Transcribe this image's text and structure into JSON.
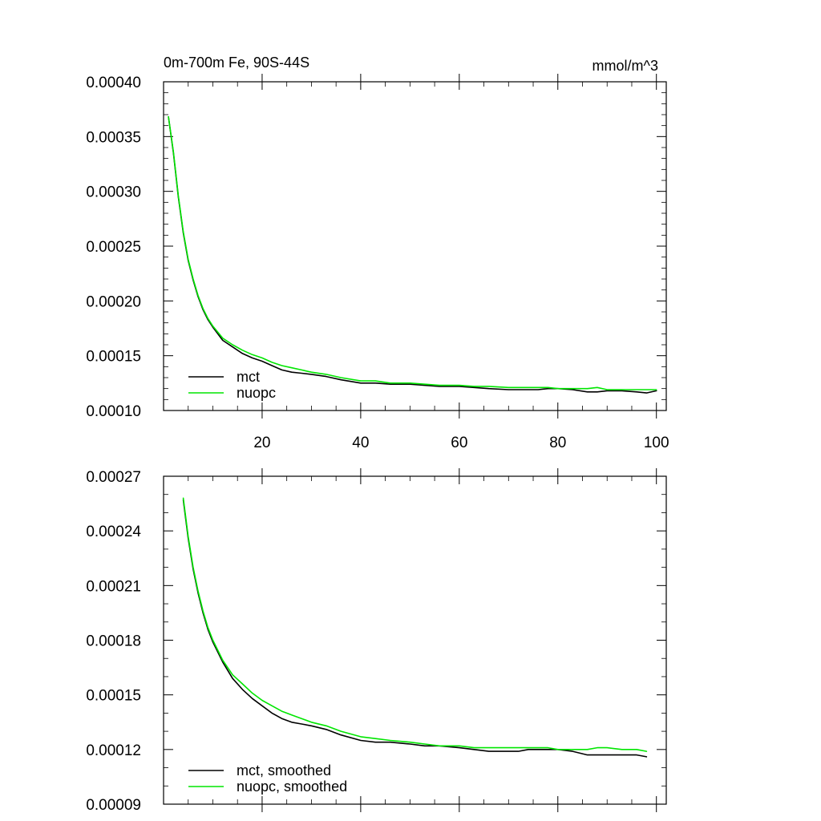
{
  "chart_data": [
    {
      "type": "line",
      "title": "0m-700m Fe, 90S-44S",
      "units": "mmol/m^3",
      "xlabel": "",
      "ylabel": "",
      "xlim": [
        0,
        102
      ],
      "ylim": [
        0.0001,
        0.0004
      ],
      "xticks": [
        20,
        40,
        60,
        80,
        100
      ],
      "xtick_labels": [
        "20",
        "40",
        "60",
        "80",
        "100"
      ],
      "yticks": [
        0.0001,
        0.00015,
        0.0002,
        0.00025,
        0.0003,
        0.00035,
        0.0004
      ],
      "ytick_labels": [
        "0.00010",
        "0.00015",
        "0.00020",
        "0.00025",
        "0.00030",
        "0.00035",
        "0.00040"
      ],
      "grid": false,
      "legend_position": "bottom-left",
      "series": [
        {
          "name": "mct",
          "color": "#000000",
          "x": [
            1,
            2,
            3,
            4,
            5,
            6,
            7,
            8,
            9,
            10,
            12,
            14,
            16,
            18,
            20,
            22,
            24,
            26,
            28,
            30,
            33,
            36,
            40,
            43,
            46,
            50,
            53,
            56,
            60,
            63,
            66,
            70,
            72,
            74,
            76,
            78,
            80,
            83,
            86,
            88,
            90,
            93,
            96,
            98,
            100
          ],
          "y": [
            0.000368,
            0.000335,
            0.000295,
            0.000262,
            0.000237,
            0.000219,
            0.000204,
            0.000192,
            0.000183,
            0.000176,
            0.000164,
            0.000158,
            0.000152,
            0.000148,
            0.000145,
            0.000141,
            0.000137,
            0.000135,
            0.000134,
            0.000133,
            0.000131,
            0.000128,
            0.000125,
            0.000125,
            0.000124,
            0.000124,
            0.000123,
            0.000122,
            0.000122,
            0.000121,
            0.00012,
            0.000119,
            0.000119,
            0.000119,
            0.000119,
            0.00012,
            0.00012,
            0.000119,
            0.000117,
            0.000117,
            0.000118,
            0.000118,
            0.000117,
            0.000116,
            0.000118
          ]
        },
        {
          "name": "nuopc",
          "color": "#00e600",
          "x": [
            1,
            2,
            3,
            4,
            5,
            6,
            7,
            8,
            9,
            10,
            12,
            14,
            16,
            18,
            20,
            22,
            24,
            26,
            28,
            30,
            33,
            36,
            40,
            43,
            46,
            50,
            53,
            56,
            60,
            63,
            66,
            70,
            72,
            74,
            76,
            78,
            80,
            83,
            86,
            88,
            90,
            93,
            96,
            98,
            100
          ],
          "y": [
            0.000368,
            0.000336,
            0.000296,
            0.000263,
            0.000238,
            0.00022,
            0.000205,
            0.000193,
            0.000184,
            0.000177,
            0.000166,
            0.00016,
            0.000155,
            0.000151,
            0.000148,
            0.000144,
            0.000141,
            0.000139,
            0.000137,
            0.000135,
            0.000133,
            0.00013,
            0.000127,
            0.000127,
            0.000125,
            0.000125,
            0.000124,
            0.000123,
            0.000123,
            0.000122,
            0.000122,
            0.000121,
            0.000121,
            0.000121,
            0.000121,
            0.000121,
            0.00012,
            0.00012,
            0.00012,
            0.000121,
            0.000119,
            0.000119,
            0.000119,
            0.000119,
            0.000119
          ]
        }
      ]
    },
    {
      "type": "line",
      "title": "",
      "xlabel": "",
      "ylabel": "",
      "xlim": [
        0,
        102
      ],
      "ylim": [
        9e-05,
        0.00027
      ],
      "xticks": [
        20,
        40,
        60,
        80,
        100
      ],
      "yticks": [
        9e-05,
        0.00012,
        0.00015,
        0.00018,
        0.00021,
        0.00024,
        0.00027
      ],
      "ytick_labels": [
        "0.00009",
        "0.00012",
        "0.00015",
        "0.00018",
        "0.00021",
        "0.00024",
        "0.00027"
      ],
      "grid": false,
      "legend_position": "bottom-left",
      "series": [
        {
          "name": "mct, smoothed",
          "color": "#000000",
          "x": [
            4,
            5,
            6,
            7,
            8,
            9,
            10,
            12,
            14,
            16,
            18,
            20,
            22,
            24,
            26,
            28,
            30,
            33,
            36,
            40,
            43,
            46,
            50,
            53,
            56,
            60,
            63,
            66,
            70,
            72,
            74,
            76,
            78,
            80,
            83,
            86,
            88,
            90,
            93,
            96,
            98
          ],
          "y": [
            0.000257,
            0.000236,
            0.000219,
            0.000206,
            0.000195,
            0.000186,
            0.000179,
            0.000168,
            0.000159,
            0.000153,
            0.000148,
            0.000144,
            0.00014,
            0.000137,
            0.000135,
            0.000134,
            0.000133,
            0.000131,
            0.000128,
            0.000125,
            0.000124,
            0.000124,
            0.000123,
            0.000122,
            0.000122,
            0.000121,
            0.00012,
            0.000119,
            0.000119,
            0.000119,
            0.00012,
            0.00012,
            0.00012,
            0.00012,
            0.000119,
            0.000117,
            0.000117,
            0.000117,
            0.000117,
            0.000117,
            0.000116
          ]
        },
        {
          "name": "nuopc, smoothed",
          "color": "#00e600",
          "x": [
            4,
            5,
            6,
            7,
            8,
            9,
            10,
            12,
            14,
            16,
            18,
            20,
            22,
            24,
            26,
            28,
            30,
            33,
            36,
            40,
            43,
            46,
            50,
            53,
            56,
            60,
            63,
            66,
            70,
            72,
            74,
            76,
            78,
            80,
            83,
            86,
            88,
            90,
            93,
            96,
            98
          ],
          "y": [
            0.000258,
            0.000237,
            0.00022,
            0.000207,
            0.000196,
            0.000187,
            0.00018,
            0.000169,
            0.000161,
            0.000156,
            0.000151,
            0.000147,
            0.000144,
            0.000141,
            0.000139,
            0.000137,
            0.000135,
            0.000133,
            0.00013,
            0.000127,
            0.000126,
            0.000125,
            0.000124,
            0.000123,
            0.000122,
            0.000122,
            0.000121,
            0.000121,
            0.000121,
            0.000121,
            0.000121,
            0.000121,
            0.000121,
            0.00012,
            0.00012,
            0.00012,
            0.000121,
            0.000121,
            0.00012,
            0.00012,
            0.000119
          ]
        }
      ]
    }
  ]
}
